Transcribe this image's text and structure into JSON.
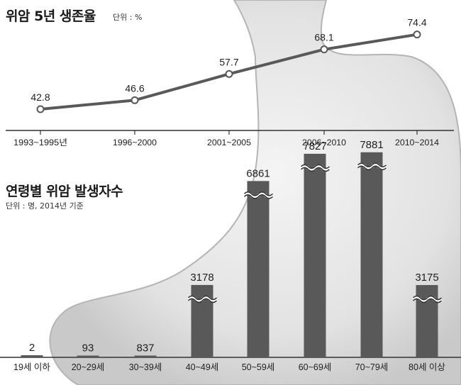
{
  "colors": {
    "line": "#595959",
    "bar": "#595959",
    "axis": "#333333",
    "stomach": "#e6e6e6"
  },
  "chart_data": [
    {
      "type": "line",
      "title": "위암 5년 생존율",
      "unit": "단위 : %",
      "x": [
        "1993~1995년",
        "1996~2000",
        "2001~2005",
        "2006~2010",
        "2010~2014"
      ],
      "series": [
        {
          "values": [
            42.8,
            46.6,
            57.7,
            68.1,
            74.4
          ]
        }
      ],
      "ylim": [
        35,
        80
      ],
      "grid": false
    },
    {
      "type": "bar",
      "title": "연령별 위암 발생자수",
      "unit": "단위 : 명, 2014년 기준",
      "categories": [
        "19세 이하",
        "20~29세",
        "30~39세",
        "40~49세",
        "50~59세",
        "60~69세",
        "70~79세",
        "80세 이상"
      ],
      "values": [
        2,
        93,
        837,
        3178,
        6861,
        7827,
        7881,
        3175
      ],
      "axis_break": [
        false,
        false,
        false,
        true,
        true,
        true,
        true,
        true
      ],
      "grid": false
    }
  ]
}
